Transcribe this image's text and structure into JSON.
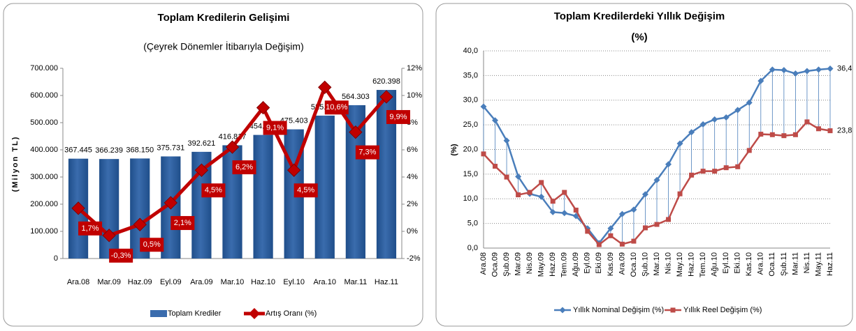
{
  "chart_data": [
    {
      "type": "bar",
      "title": "Toplam Kredilerin Gelişimi",
      "subtitle": "(Çeyrek Dönemler İtibarıyla Değişim)",
      "y_label": "(Milyon TL)",
      "categories": [
        "Ara.08",
        "Mar.09",
        "Haz.09",
        "Eyl.09",
        "Ara.09",
        "Mar.10",
        "Haz.10",
        "Eyl.10",
        "Ara.10",
        "Mar.11",
        "Haz.11"
      ],
      "series": [
        {
          "name": "Toplam Krediler",
          "type": "bar",
          "color": "#3a6cad",
          "values": [
            367445,
            366239,
            368150,
            375731,
            392621,
            416817,
            454846,
            475403,
            525851,
            564303,
            620398
          ],
          "value_labels": [
            "367.445",
            "366.239",
            "368.150",
            "375.731",
            "392.621",
            "416.817",
            "454.846",
            "475.403",
            "525.851",
            "564.303",
            "620.398"
          ]
        },
        {
          "name": "Artış Oranı (%)",
          "type": "line",
          "axis": "y2",
          "color": "#c00000",
          "values": [
            1.7,
            -0.3,
            0.5,
            2.1,
            4.5,
            6.2,
            9.1,
            4.5,
            10.6,
            7.3,
            9.9
          ],
          "value_labels": [
            "1,7%",
            "-0,3%",
            "0,5%",
            "2,1%",
            "4,5%",
            "6,2%",
            "9,1%",
            "4,5%",
            "10,6%",
            "7,3%",
            "9,9%"
          ]
        }
      ],
      "ylim": [
        0,
        700000
      ],
      "yticks": [
        {
          "value": 0,
          "label": "0"
        },
        {
          "value": 100000,
          "label": "100.000"
        },
        {
          "value": 200000,
          "label": "200.000"
        },
        {
          "value": 300000,
          "label": "300.000"
        },
        {
          "value": 400000,
          "label": "400.000"
        },
        {
          "value": 500000,
          "label": "500.000"
        },
        {
          "value": 600000,
          "label": "600.000"
        },
        {
          "value": 700000,
          "label": "700.000"
        }
      ],
      "y2lim": [
        -2,
        12
      ],
      "y2ticks": [
        {
          "value": -2,
          "label": "-2%"
        },
        {
          "value": 0,
          "label": "0%"
        },
        {
          "value": 2,
          "label": "2%"
        },
        {
          "value": 4,
          "label": "4%"
        },
        {
          "value": 6,
          "label": "6%"
        },
        {
          "value": 8,
          "label": "8%"
        },
        {
          "value": 10,
          "label": "10%"
        },
        {
          "value": 12,
          "label": "12%"
        }
      ],
      "grid": false,
      "legend": "bottom"
    },
    {
      "type": "line",
      "title": "Toplam Kredilerdeki Yıllık Değişim",
      "subtitle": "(%)",
      "y_label": "(%)",
      "categories": [
        "Ara.08",
        "Oca.09",
        "Şub.09",
        "Mar.09",
        "Nis.09",
        "May.09",
        "Haz.09",
        "Tem.09",
        "Ağu.09",
        "Eyl.09",
        "Eki.09",
        "Kas.09",
        "Ara.09",
        "Oca.10",
        "Şub.10",
        "Mar.10",
        "Nis.10",
        "May.10",
        "Haz.10",
        "Tem.10",
        "Ağu.10",
        "Eyl.10",
        "Eki.10",
        "Kas.10",
        "Ara.10",
        "Oca.11",
        "Şub.11",
        "Mar.11",
        "Nis.11",
        "May.11",
        "Haz.11"
      ],
      "series": [
        {
          "name": "Yıllık Nominal Değişim (%)",
          "color": "#4a7ebb",
          "marker": "diamond",
          "values": [
            28.7,
            25.9,
            21.8,
            14.5,
            11.0,
            10.4,
            7.3,
            7.1,
            6.5,
            4.0,
            1.0,
            4.0,
            6.9,
            7.8,
            10.9,
            13.8,
            17.0,
            21.2,
            23.5,
            25.1,
            26.1,
            26.5,
            28.0,
            29.5,
            33.9,
            36.2,
            36.1,
            35.4,
            35.9,
            36.2,
            36.4
          ],
          "value_labels": [
            null,
            null,
            null,
            null,
            null,
            null,
            null,
            null,
            null,
            null,
            null,
            null,
            null,
            null,
            null,
            null,
            null,
            null,
            null,
            null,
            null,
            null,
            null,
            null,
            null,
            null,
            null,
            null,
            null,
            null,
            "36,4"
          ]
        },
        {
          "name": "Yıllık Reel Değişim (%)",
          "color": "#be4b48",
          "marker": "square",
          "values": [
            19.1,
            16.6,
            14.4,
            10.8,
            11.3,
            13.3,
            9.5,
            11.3,
            7.7,
            3.4,
            0.7,
            2.5,
            0.8,
            1.4,
            4.1,
            4.8,
            5.8,
            11.0,
            14.8,
            15.6,
            15.6,
            16.3,
            16.5,
            19.8,
            23.1,
            23.0,
            22.8,
            23.0,
            25.6,
            24.2,
            23.8
          ],
          "value_labels": [
            null,
            null,
            null,
            null,
            null,
            null,
            null,
            null,
            null,
            null,
            null,
            null,
            null,
            null,
            null,
            null,
            null,
            null,
            null,
            null,
            null,
            null,
            null,
            null,
            null,
            null,
            null,
            null,
            null,
            null,
            "23,8"
          ]
        }
      ],
      "ylim": [
        0,
        40
      ],
      "yticks": [
        {
          "value": 0,
          "label": "0,0"
        },
        {
          "value": 5,
          "label": "5,0"
        },
        {
          "value": 10,
          "label": "10,0"
        },
        {
          "value": 15,
          "label": "15,0"
        },
        {
          "value": 20,
          "label": "20,0"
        },
        {
          "value": 25,
          "label": "25,0"
        },
        {
          "value": 30,
          "label": "30,0"
        },
        {
          "value": 35,
          "label": "35,0"
        },
        {
          "value": 40,
          "label": "40,0"
        }
      ],
      "grid": true,
      "legend": "bottom"
    }
  ]
}
